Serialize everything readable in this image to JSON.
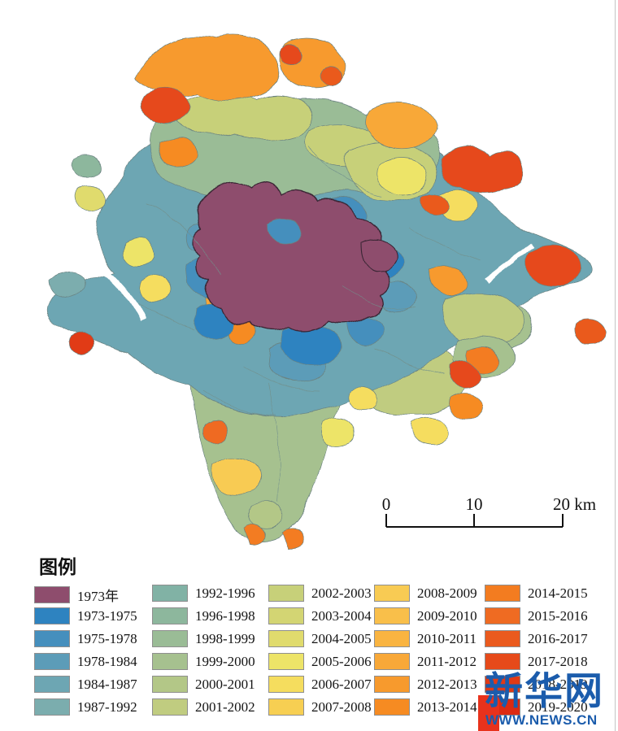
{
  "page": {
    "background": "#ffffff"
  },
  "scalebar": {
    "tick0": "0",
    "tick1": "10",
    "tick2": "20 km"
  },
  "legend": {
    "title": "图例",
    "columns": [
      {
        "items": [
          {
            "label": "1973年",
            "color": "#8e4d6d"
          },
          {
            "label": "1973-1975",
            "color": "#2e83c0"
          },
          {
            "label": "1975-1978",
            "color": "#458fbd"
          },
          {
            "label": "1978-1984",
            "color": "#5c9cb8"
          },
          {
            "label": "1984-1987",
            "color": "#6da6b3"
          },
          {
            "label": "1987-1992",
            "color": "#7badae"
          }
        ]
      },
      {
        "items": [
          {
            "label": "1992-1996",
            "color": "#81b2a5"
          },
          {
            "label": "1996-1998",
            "color": "#8db79d"
          },
          {
            "label": "1998-1999",
            "color": "#9abc96"
          },
          {
            "label": "1999-2000",
            "color": "#a6c18f"
          },
          {
            "label": "2000-2001",
            "color": "#b3c787"
          },
          {
            "label": "2001-2002",
            "color": "#c0cc80"
          }
        ]
      },
      {
        "items": [
          {
            "label": "2002-2003",
            "color": "#c7d079"
          },
          {
            "label": "2003-2004",
            "color": "#d3d573"
          },
          {
            "label": "2004-2005",
            "color": "#e0db6d"
          },
          {
            "label": "2005-2006",
            "color": "#ede468"
          },
          {
            "label": "2006-2007",
            "color": "#f5dd5e"
          },
          {
            "label": "2007-2008",
            "color": "#f7cf52"
          }
        ]
      },
      {
        "items": [
          {
            "label": "2008-2009",
            "color": "#f8cb53"
          },
          {
            "label": "2009-2010",
            "color": "#f9bf4a"
          },
          {
            "label": "2010-2011",
            "color": "#f9b441"
          },
          {
            "label": "2011-2012",
            "color": "#f8a838"
          },
          {
            "label": "2012-2013",
            "color": "#f79a2d"
          },
          {
            "label": "2013-2014",
            "color": "#f68b22"
          }
        ]
      },
      {
        "items": [
          {
            "label": "2014-2015",
            "color": "#f37c20"
          },
          {
            "label": "2015-2016",
            "color": "#ef6b22"
          },
          {
            "label": "2016-2017",
            "color": "#ea5a1e"
          },
          {
            "label": "2017-2018",
            "color": "#e64a1a"
          },
          {
            "label": "2018-2019",
            "color": "#e13a16"
          },
          {
            "label": "2019-2020",
            "color": "#dc2a12"
          }
        ]
      }
    ]
  },
  "watermark": {
    "brand": "新华网",
    "site": "WWW.NEWS.CN",
    "blue": "#1b5cac",
    "red": "#e8321c"
  },
  "colors": {
    "parcel_outline": "#6a8280",
    "core_outline": "#3a2634",
    "scalebar_ink": "#111111"
  }
}
